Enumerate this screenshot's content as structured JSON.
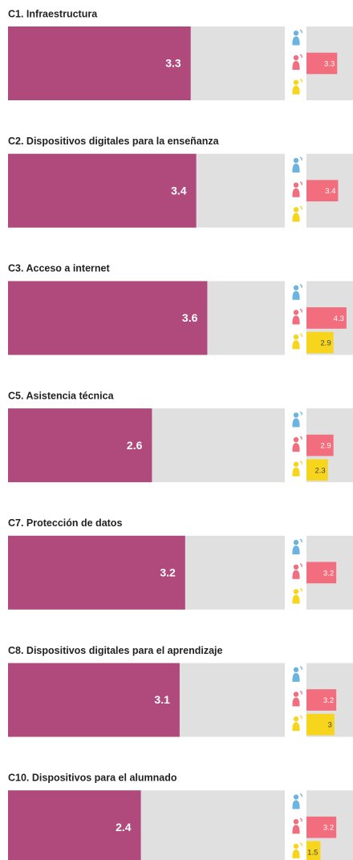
{
  "chart_data": {
    "type": "bar",
    "xlim": [
      0,
      5
    ],
    "color": "#b04a7c",
    "background": "#e0e0e0",
    "categories": [
      "C1. Infraestructura",
      "C2. Dispositivos digitales para la enseñanza",
      "C3. Acceso a internet",
      "C5. Asistencia técnica",
      "C7. Protección de datos",
      "C8. Dispositivos digitales para el aprendizaje",
      "C10. Dispositivos para el alumnado"
    ],
    "values": [
      3.3,
      3.4,
      3.6,
      2.6,
      3.2,
      3.1,
      2.4
    ],
    "series": [
      {
        "color": "#6bb3e0",
        "values": [
          null,
          null,
          null,
          null,
          null,
          null,
          null
        ]
      },
      {
        "color": "#f26d7d",
        "values": [
          3.3,
          3.4,
          4.3,
          2.9,
          3.2,
          3.2,
          3.2
        ]
      },
      {
        "color": "#f7d51d",
        "values": [
          null,
          null,
          2.9,
          2.3,
          null,
          3,
          1.5
        ]
      }
    ]
  }
}
